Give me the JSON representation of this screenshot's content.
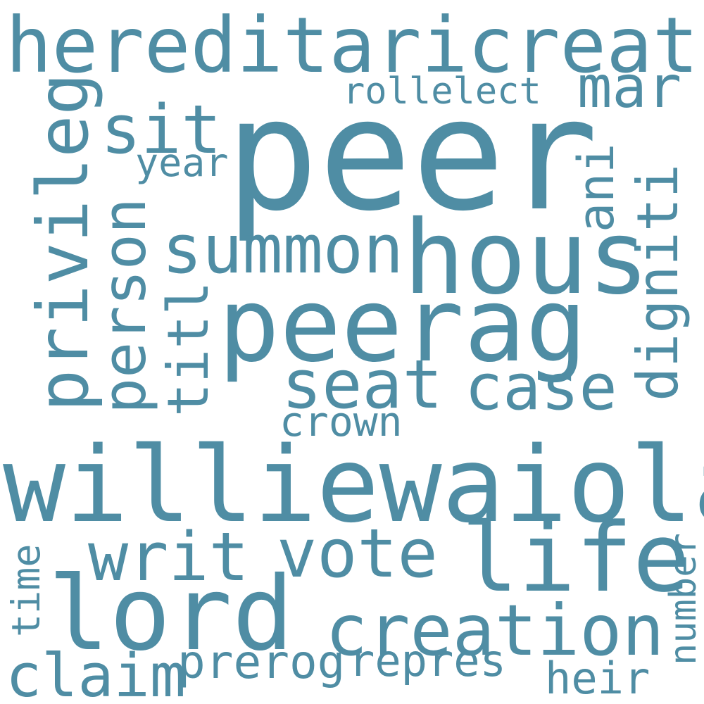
{
  "words": {
    "peer": "peer",
    "williewaiola": "williewaiola",
    "hereditaricreat": "hereditaricreat",
    "hous": "hous",
    "peerag": "peerag",
    "lord": "lord",
    "life": "life",
    "creation": "creation",
    "privileg": "privileg",
    "person": "person",
    "summon": "summon",
    "writ": "writ",
    "vote": "vote",
    "seat": "seat",
    "case": "case",
    "titl": "titl",
    "digniti": "digniti",
    "sit": "sit",
    "mar": "mar",
    "claim": "claim",
    "ani": "ani",
    "rollelect": "rollelect",
    "prerog": "prerog",
    "repres": "repres",
    "crown": "crown",
    "year": "year",
    "time": "time",
    "number": "number",
    "heir": "heir"
  },
  "colors": {
    "word": "#4f8da4",
    "background": "#ffffff"
  }
}
